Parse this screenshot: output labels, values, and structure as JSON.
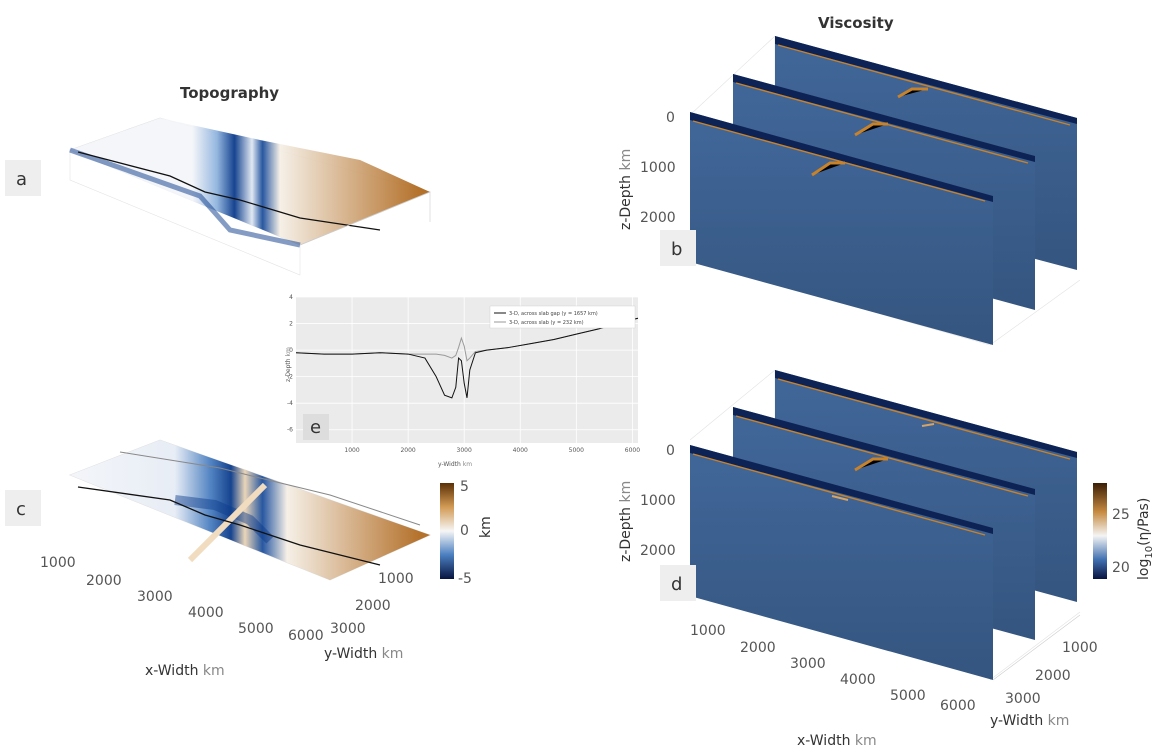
{
  "titles": {
    "topography": "Topography",
    "viscosity": "Viscosity"
  },
  "panel_letters": [
    "a",
    "b",
    "c",
    "d",
    "e"
  ],
  "topo_colorbar": {
    "ticks": [
      "5",
      "0",
      "-5"
    ],
    "label": "km",
    "range": [
      -5,
      5
    ]
  },
  "visc_colorbar": {
    "ticks": [
      "25",
      "20"
    ],
    "label_prefix": "log",
    "label_sub": "10",
    "label_rest": "(η/Pas)",
    "range": [
      19,
      28
    ]
  },
  "topo_axes": {
    "x_ticks": [
      "1000",
      "2000",
      "3000",
      "4000",
      "5000",
      "6000"
    ],
    "y_ticks": [
      "1000",
      "2000",
      "3000"
    ],
    "xlabel": "x-Width",
    "ylabel": "y-Width",
    "unit": "km"
  },
  "visc_axes": {
    "z_ticks": [
      "0",
      "1000",
      "2000"
    ],
    "zlabel": "z-Depth",
    "x_ticks": [
      "1000",
      "2000",
      "3000",
      "4000",
      "5000",
      "6000"
    ],
    "y_ticks": [
      "1000",
      "2000",
      "3000"
    ],
    "xlabel": "x-Width",
    "ylabel": "y-Width",
    "unit": "km"
  },
  "colors": {
    "topo_low": "#0a3a8a",
    "topo_mid": "#f4f6fa",
    "topo_high": "#b06a20",
    "slab": "#c8822a",
    "plane": "#3a5f8e",
    "plane_top": "#0d2355"
  },
  "chart_data": {
    "type": "line",
    "panel": "e",
    "xlabel": "y-Width",
    "xunit": "km",
    "ylabel": "z-Depth",
    "yunit": "km",
    "xlim": [
      0,
      6100
    ],
    "ylim": [
      -7,
      4
    ],
    "x_ticks": [
      1000,
      2000,
      3000,
      4000,
      5000,
      6000
    ],
    "y_ticks": [
      4,
      2,
      0,
      -2,
      -4,
      -6
    ],
    "legend": "top-right",
    "series": [
      {
        "name": "3-D, across slab gap (y = 1657 km)",
        "color": "#111111",
        "x": [
          0,
          500,
          1000,
          1500,
          2000,
          2300,
          2500,
          2650,
          2780,
          2850,
          2900,
          2950,
          3000,
          3050,
          3100,
          3200,
          3400,
          3800,
          4200,
          4600,
          5000,
          5400,
          5800,
          6100
        ],
        "y": [
          -0.2,
          -0.3,
          -0.3,
          -0.2,
          -0.3,
          -0.6,
          -2.0,
          -3.4,
          -3.6,
          -2.8,
          -0.6,
          -0.8,
          -2.5,
          -3.6,
          -1.5,
          -0.2,
          0.0,
          0.2,
          0.5,
          0.8,
          1.2,
          1.6,
          2.1,
          2.4
        ]
      },
      {
        "name": "3-D, across slab (y = 232 km)",
        "color": "#9a9a9a",
        "x": [
          0,
          500,
          1000,
          1500,
          2000,
          2300,
          2500,
          2650,
          2780,
          2850,
          2900,
          2950,
          3000,
          3050,
          3100,
          3200,
          3400,
          3800,
          4200,
          4600,
          5000,
          5400,
          5800,
          6100
        ],
        "y": [
          -0.2,
          -0.3,
          -0.3,
          -0.2,
          -0.3,
          -0.3,
          -0.3,
          -0.4,
          -0.6,
          -0.4,
          0.2,
          0.9,
          0.3,
          -0.8,
          -0.6,
          -0.1,
          0.0,
          0.2,
          0.5,
          0.8,
          1.2,
          1.6,
          2.1,
          2.4
        ]
      }
    ]
  }
}
